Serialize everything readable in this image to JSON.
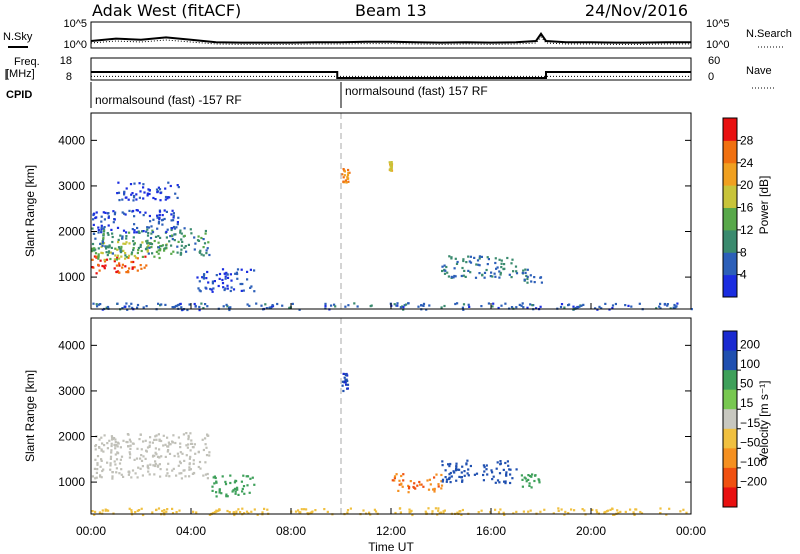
{
  "header": {
    "site": "Adak West (fitACF)",
    "beam": "Beam 13",
    "date": "24/Nov/2016"
  },
  "colors": {
    "axis": "#000000",
    "power_scale": [
      "#1b2de0",
      "#2c5fb8",
      "#3a8a6e",
      "#58a84a",
      "#c8c43a",
      "#f0a020",
      "#f07010",
      "#e81010"
    ],
    "velocity_scale": [
      "#e81010",
      "#f05010",
      "#f59020",
      "#f0c040",
      "#c8c8c0",
      "#78c850",
      "#3ea05a",
      "#2050b0",
      "#1a2ad0"
    ],
    "ground_scatter": "#c0c0b8"
  },
  "chart_data": [
    {
      "type": "line",
      "panel": "noise",
      "y_label_left": "N.Sky",
      "y_label_right": "N.Search",
      "y_ticks_left": [
        "10^5",
        "10^0"
      ],
      "y_ticks_right": [
        "10^5",
        "10^0"
      ],
      "series": [
        {
          "name": "N.Sky",
          "style": "solid",
          "x": [
            0,
            1,
            2,
            3,
            4,
            5,
            6,
            7,
            8,
            9,
            10,
            11,
            12,
            13,
            14,
            15,
            16,
            17,
            17.8,
            18,
            18.2,
            19,
            20,
            21,
            22,
            23,
            24
          ],
          "y": [
            0.25,
            0.35,
            0.3,
            0.4,
            0.3,
            0.2,
            0.18,
            0.18,
            0.18,
            0.2,
            0.2,
            0.22,
            0.22,
            0.2,
            0.18,
            0.2,
            0.18,
            0.2,
            0.25,
            0.55,
            0.25,
            0.2,
            0.2,
            0.18,
            0.18,
            0.2,
            0.2
          ]
        }
      ]
    },
    {
      "type": "line",
      "panel": "frequency",
      "y_label_left": "Freq.\n[MHz]",
      "y_label_right": "Nave",
      "y_ticks_left": [
        "18",
        "8"
      ],
      "y_ticks_right": [
        "60",
        "0"
      ],
      "series": [
        {
          "name": "Freq.",
          "style": "solid",
          "x": [
            0,
            9.85,
            9.85,
            18.2,
            18.2,
            24
          ],
          "y": [
            11.5,
            11.5,
            8.5,
            8.5,
            11.5,
            11.5
          ]
        },
        {
          "name": "Nave",
          "style": "dotted",
          "x": [
            0,
            24
          ],
          "y": [
            8,
            8
          ]
        }
      ]
    },
    {
      "type": "table",
      "panel": "cpid",
      "label": "CPID",
      "segments": [
        {
          "x_start": 0,
          "x_end": 9.85,
          "text": "normalsound (fast) -157 RF"
        },
        {
          "x_start": 9.85,
          "x_end": 24,
          "text": "normalsound (fast) 157 RF"
        }
      ]
    },
    {
      "type": "heatmap",
      "panel": "power",
      "ylabel": "Slant Range [km]",
      "x_range": [
        0,
        24
      ],
      "y_range": [
        300,
        4600
      ],
      "y_ticks": [
        1000,
        2000,
        3000,
        4000
      ],
      "colorbar": {
        "label": "Power [dB]",
        "ticks": [
          4,
          8,
          12,
          16,
          20,
          24,
          28
        ],
        "range": [
          0,
          32
        ]
      },
      "regions": [
        {
          "t0": 0.0,
          "t1": 2.2,
          "r0": 1100,
          "r1": 1500,
          "value": 28
        },
        {
          "t0": 0.0,
          "t1": 3.0,
          "r0": 1400,
          "r1": 1800,
          "value": 16
        },
        {
          "t0": 0.0,
          "t1": 4.7,
          "r0": 1500,
          "r1": 2100,
          "value": 10
        },
        {
          "t0": 0.0,
          "t1": 3.5,
          "r0": 2000,
          "r1": 2500,
          "value": 4
        },
        {
          "t0": 1.0,
          "t1": 3.5,
          "r0": 2700,
          "r1": 3100,
          "value": 4
        },
        {
          "t0": 4.2,
          "t1": 6.5,
          "r0": 700,
          "r1": 1200,
          "value": 4
        },
        {
          "t0": 14.0,
          "t1": 17.0,
          "r0": 1000,
          "r1": 1500,
          "value": 8
        },
        {
          "t0": 17.2,
          "t1": 18.0,
          "r0": 900,
          "r1": 1200,
          "value": 8
        },
        {
          "t0": 10.0,
          "t1": 10.3,
          "r0": 3100,
          "r1": 3400,
          "value": 24
        },
        {
          "t0": 11.9,
          "t1": 12.0,
          "r0": 3300,
          "r1": 3550,
          "value": 20
        },
        {
          "t0": 0.0,
          "t1": 24.0,
          "r0": 300,
          "r1": 450,
          "value": 6
        }
      ]
    },
    {
      "type": "heatmap",
      "panel": "velocity",
      "ylabel": "Slant Range [km]",
      "xlabel": "Time UT",
      "x_range": [
        0,
        24
      ],
      "y_range": [
        300,
        4600
      ],
      "y_ticks": [
        1000,
        2000,
        3000,
        4000
      ],
      "x_ticks": [
        "00:00",
        "04:00",
        "08:00",
        "12:00",
        "16:00",
        "20:00",
        "00:00"
      ],
      "colorbar": {
        "label": "Velocity [m s^-1]",
        "ticks": [
          200,
          100,
          50,
          15,
          -15,
          -50,
          -100,
          -200
        ]
      },
      "regions": [
        {
          "t0": 0.0,
          "t1": 4.7,
          "r0": 1100,
          "r1": 2100,
          "value": 0,
          "ground_scatter": true
        },
        {
          "t0": 4.8,
          "t1": 6.5,
          "r0": 700,
          "r1": 1200,
          "value": 60
        },
        {
          "t0": 12.0,
          "t1": 14.0,
          "r0": 800,
          "r1": 1200,
          "value": -100
        },
        {
          "t0": 14.0,
          "t1": 17.0,
          "r0": 1000,
          "r1": 1500,
          "value": 180
        },
        {
          "t0": 17.0,
          "t1": 18.0,
          "r0": 900,
          "r1": 1200,
          "value": 60
        },
        {
          "t0": 10.0,
          "t1": 10.3,
          "r0": 3000,
          "r1": 3400,
          "value": 200
        },
        {
          "t0": 0.0,
          "t1": 24.0,
          "r0": 300,
          "r1": 450,
          "value": -40
        }
      ]
    }
  ]
}
